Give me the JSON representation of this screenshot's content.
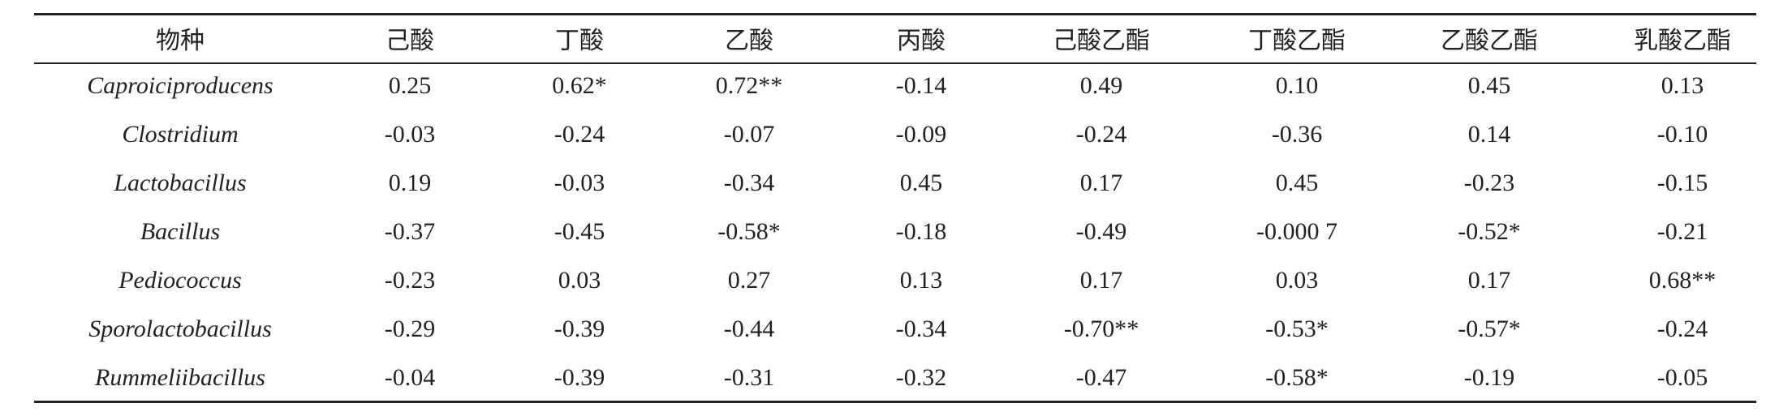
{
  "table": {
    "header": [
      "物种",
      "己酸",
      "丁酸",
      "乙酸",
      "丙酸",
      "己酸乙酯",
      "丁酸乙酯",
      "乙酸乙酯",
      "乳酸乙酯"
    ],
    "rows": [
      [
        "Caproiciproducens",
        "0.25",
        "0.62*",
        "0.72**",
        "-0.14",
        "0.49",
        "0.10",
        "0.45",
        "0.13"
      ],
      [
        "Clostridium",
        "-0.03",
        "-0.24",
        "-0.07",
        "-0.09",
        "-0.24",
        "-0.36",
        "0.14",
        "-0.10"
      ],
      [
        "Lactobacillus",
        "0.19",
        "-0.03",
        "-0.34",
        "0.45",
        "0.17",
        "0.45",
        "-0.23",
        "-0.15"
      ],
      [
        "Bacillus",
        "-0.37",
        "-0.45",
        "-0.58*",
        "-0.18",
        "-0.49",
        "-0.000 7",
        "-0.52*",
        "-0.21"
      ],
      [
        "Pediococcus",
        "-0.23",
        "0.03",
        "0.27",
        "0.13",
        "0.17",
        "0.03",
        "0.17",
        "0.68**"
      ],
      [
        "Sporolactobacillus",
        "-0.29",
        "-0.39",
        "-0.44",
        "-0.34",
        "-0.70**",
        "-0.53*",
        "-0.57*",
        "-0.24"
      ],
      [
        "Rummeliibacillus",
        "-0.04",
        "-0.39",
        "-0.31",
        "-0.32",
        "-0.47",
        "-0.58*",
        "-0.19",
        "-0.05"
      ]
    ]
  }
}
